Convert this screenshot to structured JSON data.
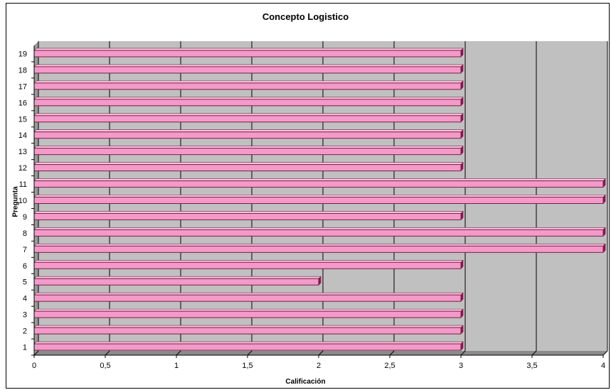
{
  "chart_data": {
    "type": "bar",
    "orientation": "horizontal",
    "title": "Concepto Logistico",
    "xlabel": "Calificación",
    "ylabel": "Pregunta",
    "categories": [
      "1",
      "2",
      "3",
      "4",
      "5",
      "6",
      "7",
      "8",
      "9",
      "10",
      "11",
      "12",
      "13",
      "14",
      "15",
      "16",
      "17",
      "18",
      "19"
    ],
    "values": [
      3,
      3,
      3,
      3,
      2,
      3,
      4,
      4,
      3,
      4,
      4,
      3,
      3,
      3,
      3,
      3,
      3,
      3,
      3
    ],
    "xlim": [
      0,
      4
    ],
    "xticks": [
      "0",
      "0,5",
      "1",
      "1,5",
      "2",
      "2,5",
      "3",
      "3,5",
      "4"
    ],
    "grid": true,
    "colors": {
      "bar": "#f49ac8",
      "bar_dark": "#7a1f4a",
      "plot_bg": "#c0c0c0",
      "grid": "#000000"
    }
  }
}
